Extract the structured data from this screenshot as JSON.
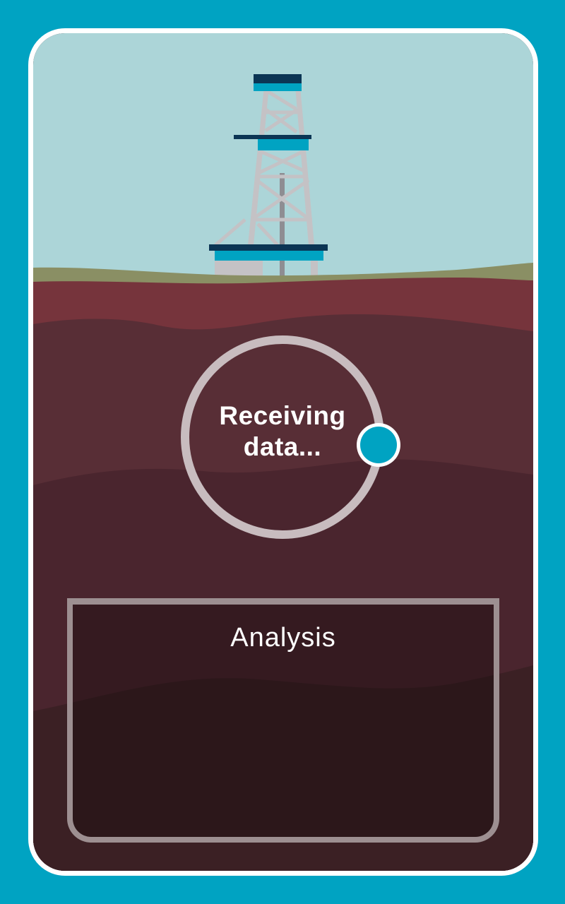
{
  "status": {
    "label": "Receiving data..."
  },
  "analysis": {
    "title": "Analysis"
  },
  "colors": {
    "background": "#00a3c2",
    "sky": "#acd5d8",
    "grass": "#8a8f64",
    "topsoil": "#76343c",
    "rock": "#582e36",
    "deep_rock": "#3b2024",
    "accent": "#00a3c2",
    "rig_dark": "#0b3554",
    "rig_steel": "#c4c2c5"
  },
  "icons": {
    "rig": "drilling-rig-icon",
    "progress": "progress-ring-icon"
  }
}
